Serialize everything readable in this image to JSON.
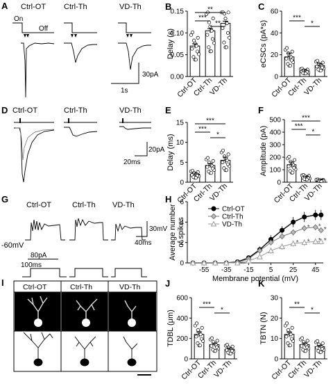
{
  "panels": {
    "A": {
      "label": "A",
      "traces": [
        {
          "name": "Ctrl-OT",
          "on_label": "On",
          "off_label": "Off"
        },
        {
          "name": "Ctrl-Th"
        },
        {
          "name": "VD-Th"
        }
      ],
      "scale": {
        "y": "30pA",
        "x": "1s"
      }
    },
    "D": {
      "label": "D",
      "traces": [
        {
          "name": "Ctrl-OT"
        },
        {
          "name": "Ctrl-Th"
        },
        {
          "name": "VD-Th"
        }
      ],
      "scale": {
        "y": "20pA",
        "x": "20ms"
      }
    },
    "G": {
      "label": "G",
      "traces": [
        {
          "name": "Ctrl-OT"
        },
        {
          "name": "Ctrl-Th"
        },
        {
          "name": "VD-Th"
        }
      ],
      "hold_label": "-60mV",
      "step_label": "80pA",
      "step_time_label": "100ms",
      "scale": {
        "y": "30mV",
        "x": "40ms"
      }
    },
    "I": {
      "label": "I",
      "headers": [
        "Ctrl-OT",
        "Ctrl-Th",
        "VD-Th"
      ]
    }
  },
  "chart_data": [
    {
      "id": "B",
      "label": "B",
      "type": "bar",
      "categories": [
        "Ctrl-OT",
        "Ctrl-Th",
        "VD-Th"
      ],
      "values": [
        0.07,
        0.105,
        0.122
      ],
      "errors": [
        0.005,
        0.005,
        0.005
      ],
      "ylabel": "Delay (s)",
      "ylim": [
        0,
        0.15
      ],
      "yticks": [
        "0.00",
        "0.05",
        "0.10",
        "0.15"
      ],
      "significance": [
        {
          "from": 0,
          "to": 2,
          "text": "**"
        },
        {
          "from": 0,
          "to": 1,
          "text": "***"
        },
        {
          "from": 1,
          "to": 2,
          "text": "**"
        }
      ]
    },
    {
      "id": "C",
      "label": "C",
      "type": "bar",
      "categories": [
        "Ctrl-OT",
        "Ctrl-Th",
        "VD-Th"
      ],
      "values": [
        18,
        5,
        10
      ],
      "errors": [
        3.5,
        1.2,
        2
      ],
      "ylabel": "eCSCs (pA*s)",
      "ylim": [
        0,
        60
      ],
      "yticks": [
        "0",
        "20",
        "40",
        "60"
      ],
      "significance": [
        {
          "from": 0,
          "to": 1,
          "text": "***"
        },
        {
          "from": 1,
          "to": 2,
          "text": "*"
        }
      ]
    },
    {
      "id": "E",
      "label": "E",
      "type": "bar",
      "categories": [
        "Ctrl-OT",
        "Ctrl-Th",
        "VD-Th"
      ],
      "values": [
        2,
        4.2,
        5.5
      ],
      "errors": [
        0.3,
        0.5,
        0.8
      ],
      "ylabel": "Delay (ms)",
      "ylim": [
        0,
        15
      ],
      "yticks": [
        "0",
        "5",
        "10",
        "15"
      ],
      "significance": [
        {
          "from": 0,
          "to": 2,
          "text": "***"
        },
        {
          "from": 0,
          "to": 1,
          "text": "***"
        },
        {
          "from": 1,
          "to": 2,
          "text": "*"
        }
      ]
    },
    {
      "id": "F",
      "label": "F",
      "type": "bar",
      "categories": [
        "Ctrl-OT",
        "Ctrl-Th",
        "VD-Th"
      ],
      "values": [
        140,
        40,
        15
      ],
      "errors": [
        22,
        8,
        4
      ],
      "ylabel": "Amplitude (pA)",
      "ylim": [
        0,
        500
      ],
      "yticks": [
        "0",
        "100",
        "200",
        "300",
        "400",
        "500"
      ],
      "significance": [
        {
          "from": 0,
          "to": 2,
          "text": "***"
        },
        {
          "from": 0,
          "to": 1,
          "text": "***"
        },
        {
          "from": 1,
          "to": 2,
          "text": "*"
        }
      ]
    },
    {
      "id": "H",
      "label": "H",
      "type": "line",
      "x": [
        -65,
        -55,
        -45,
        -35,
        -25,
        -15,
        -5,
        5,
        15,
        25,
        35,
        45,
        50
      ],
      "xticks": [
        "-55",
        "-35",
        "-15",
        "5",
        "25",
        "45"
      ],
      "xlabel": "Membrane potential (mV)",
      "ylabel": "Average number of spikes",
      "ylabel_lines": [
        "Average number",
        "of spikes"
      ],
      "ylim": [
        0,
        6
      ],
      "yticks": [
        "0",
        "2",
        "4",
        "6"
      ],
      "legend": "top-left",
      "series": [
        {
          "name": "Ctrl-OT",
          "marker": "circle",
          "values": [
            0,
            0,
            0,
            0,
            0.1,
            0.5,
            1.3,
            2.3,
            3.2,
            4.0,
            4.5,
            4.7,
            4.7
          ],
          "errors": [
            0,
            0,
            0,
            0,
            0.1,
            0.2,
            0.3,
            0.4,
            0.4,
            0.5,
            0.5,
            0.5,
            0.5
          ]
        },
        {
          "name": "Ctrl-Th",
          "marker": "diamond",
          "values": [
            0,
            0,
            0,
            0,
            0.05,
            0.4,
            1.2,
            2.0,
            2.6,
            3.0,
            3.4,
            3.5,
            3.2
          ],
          "errors": [
            0,
            0,
            0,
            0,
            0.05,
            0.2,
            0.3,
            0.3,
            0.3,
            0.3,
            0.3,
            0.3,
            0.3
          ]
        },
        {
          "name": "VD-Th",
          "marker": "triangle",
          "values": [
            0,
            0,
            0,
            0,
            0,
            0.2,
            0.6,
            1.2,
            1.6,
            1.9,
            2.0,
            2.1,
            2.1
          ],
          "errors": [
            0,
            0,
            0,
            0,
            0,
            0.1,
            0.2,
            0.3,
            0.3,
            0.3,
            0.3,
            0.3,
            0.3
          ]
        }
      ],
      "significance_markers": [
        {
          "series": 1,
          "x": 35,
          "text": "*"
        },
        {
          "series": 1,
          "x": 45,
          "text": "*"
        },
        {
          "series": 1,
          "x": 50,
          "text": "*"
        },
        {
          "series": 2,
          "x": 25,
          "text": "*"
        },
        {
          "series": 2,
          "x": 35,
          "text": "*"
        },
        {
          "series": 2,
          "x": 45,
          "text": "*"
        },
        {
          "series": 2,
          "x": 50,
          "text": "*"
        }
      ]
    },
    {
      "id": "J",
      "label": "J",
      "type": "bar",
      "categories": [
        "Ctrl-OT",
        "Ctrl-Th",
        "VD-Th"
      ],
      "values": [
        240,
        140,
        95
      ],
      "errors": [
        25,
        15,
        12
      ],
      "ylabel": "TDBL (μm)",
      "ylim": [
        0,
        600
      ],
      "yticks": [
        "0",
        "200",
        "400",
        "600"
      ],
      "significance": [
        {
          "from": 0,
          "to": 1,
          "text": "***"
        },
        {
          "from": 1,
          "to": 2,
          "text": "*"
        }
      ]
    },
    {
      "id": "K",
      "label": "K",
      "type": "bar",
      "categories": [
        "Ctrl-OT",
        "Ctrl-Th",
        "VD-Th"
      ],
      "values": [
        12,
        7,
        6
      ],
      "errors": [
        1.2,
        0.8,
        0.6
      ],
      "ylabel": "TBTN (N)",
      "ylim": [
        0,
        30
      ],
      "yticks": [
        "0",
        "10",
        "20",
        "30"
      ],
      "significance": [
        {
          "from": 0,
          "to": 1,
          "text": "**"
        },
        {
          "from": 1,
          "to": 2,
          "text": "*"
        }
      ]
    }
  ]
}
